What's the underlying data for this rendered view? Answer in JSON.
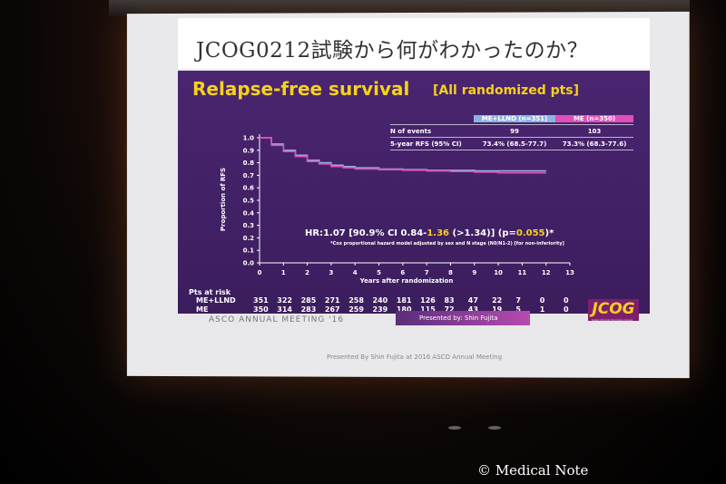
{
  "slide": {
    "heading": "JCOG0212試験から何がわかったのか？",
    "subtitle": "Relapse-free survival",
    "subtitle_tag": "[All randomized pts]",
    "hr_text_prefix": "HR:1.07 [90.9% CI 0.84-",
    "hr_upper": "1.36",
    "hr_mid": " (>1.34)] (p=",
    "hr_p": "0.055",
    "hr_suffix": ")*",
    "footnote": "*Cox proportional hazard model adjusted by sex and N stage (N0/N1-2) [for non-inferiority]",
    "asco": "ASCO ANNUAL MEETING '16",
    "presented_by": "Presented by: Shin Fujita",
    "credit": "Presented By Shin Fujita at 2016 ASCO Annual Meeting",
    "logo": "JCOG",
    "logo_sub": "Japan Clinical Oncology Group"
  },
  "stats_table": {
    "headers": [
      "",
      "ME+LLND (n=351)",
      "ME (n=350)"
    ],
    "rows": [
      [
        "N of events",
        "99",
        "103"
      ],
      [
        "5-year RFS (95% CI)",
        "73.4% (68.5-77.7)",
        "73.3% (68.3-77.6)"
      ]
    ]
  },
  "risk_table": {
    "title": "Pts at risk",
    "rows": [
      {
        "label": "ME+LLND",
        "values": [
          "351",
          "322",
          "285",
          "271",
          "258",
          "240",
          "181",
          "126",
          "83",
          "47",
          "22",
          "7",
          "0",
          "0"
        ]
      },
      {
        "label": "ME",
        "values": [
          "350",
          "314",
          "283",
          "267",
          "259",
          "239",
          "180",
          "115",
          "72",
          "43",
          "19",
          "5",
          "1",
          "0"
        ]
      }
    ]
  },
  "chart_data": {
    "type": "line",
    "ylabel": "Proportion of RFS",
    "xlabel": "Years after randomization",
    "xlim": [
      0,
      13
    ],
    "ylim": [
      0,
      1.0
    ],
    "x_ticks": [
      "0",
      "1",
      "2",
      "3",
      "4",
      "5",
      "6",
      "7",
      "8",
      "9",
      "10",
      "11",
      "12",
      "13"
    ],
    "y_ticks": [
      "0.0",
      "0.1",
      "0.2",
      "0.3",
      "0.4",
      "0.5",
      "0.6",
      "0.7",
      "0.8",
      "0.9",
      "1.0"
    ],
    "series": [
      {
        "name": "ME+LLND",
        "color": "#8bb3e3",
        "x": [
          0,
          0.5,
          1,
          1.5,
          2,
          2.5,
          3,
          3.5,
          4,
          5,
          6,
          7,
          8,
          9,
          10,
          11,
          12
        ],
        "y": [
          1.0,
          0.95,
          0.9,
          0.86,
          0.82,
          0.8,
          0.78,
          0.77,
          0.76,
          0.75,
          0.745,
          0.74,
          0.74,
          0.735,
          0.735,
          0.735,
          0.735
        ]
      },
      {
        "name": "ME",
        "color": "#e04fb9",
        "x": [
          0,
          0.5,
          1,
          1.5,
          2,
          2.5,
          3,
          3.5,
          4,
          5,
          6,
          7,
          8,
          9,
          10,
          11,
          12
        ],
        "y": [
          1.0,
          0.94,
          0.89,
          0.85,
          0.81,
          0.79,
          0.77,
          0.76,
          0.75,
          0.745,
          0.74,
          0.735,
          0.73,
          0.725,
          0.72,
          0.72,
          0.72
        ]
      }
    ]
  },
  "watermark": "© Medical Note"
}
